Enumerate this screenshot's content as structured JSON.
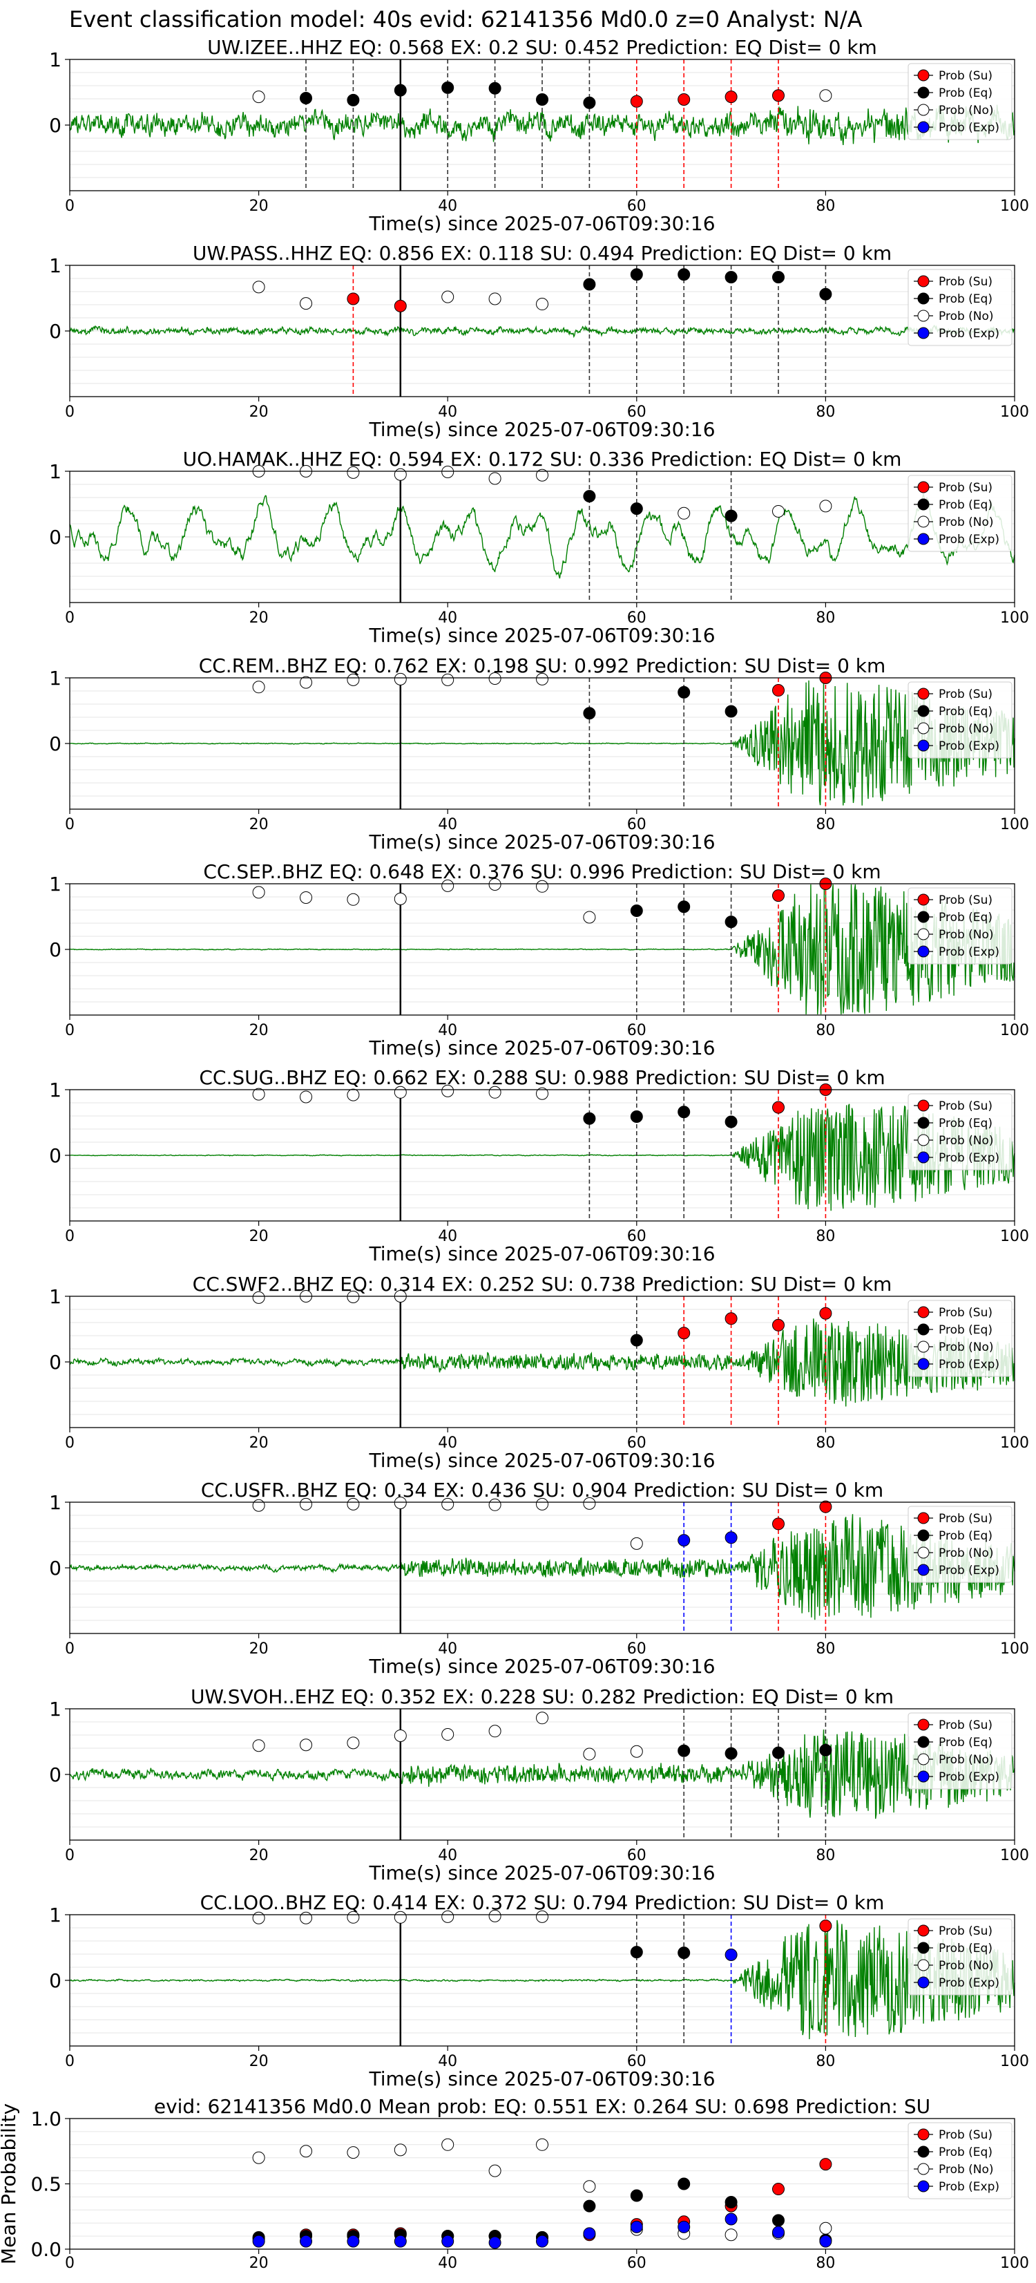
{
  "suptitle": "Event classification model: 40s evid: 62141356 Md0.0 z=0 Analyst: N/A",
  "xlabel": "Time(s) since 2025-07-06T09:30:16",
  "legend": [
    "Prob (Su)",
    "Prob (Eq)",
    "Prob (No)",
    "Prob (Exp)"
  ],
  "colors": {
    "su": "#ff0000",
    "eq": "#000000",
    "no": "#ffffff",
    "exp": "#0000ff",
    "wave": "#008000"
  },
  "chart_data": [
    {
      "type": "line",
      "title": "UW.IZEE..HHZ   EQ: 0.568  EX: 0.2  SU: 0.452   Prediction: EQ    Dist= 0 km",
      "xlim": [
        0,
        100
      ],
      "ylim": [
        -1,
        1
      ],
      "xticks": [
        0,
        20,
        40,
        60,
        80,
        100
      ],
      "yticks": [
        1,
        0
      ],
      "onset": 35,
      "noise": 0.28,
      "burst": 0.15,
      "points": [
        [
          20,
          0.43,
          "no"
        ],
        [
          25,
          0.41,
          "eq"
        ],
        [
          30,
          0.38,
          "eq"
        ],
        [
          35,
          0.53,
          "eq"
        ],
        [
          40,
          0.57,
          "eq"
        ],
        [
          45,
          0.56,
          "eq"
        ],
        [
          50,
          0.39,
          "eq"
        ],
        [
          55,
          0.34,
          "eq"
        ],
        [
          60,
          0.36,
          "su"
        ],
        [
          65,
          0.39,
          "su"
        ],
        [
          70,
          0.43,
          "su"
        ],
        [
          75,
          0.45,
          "su"
        ],
        [
          80,
          0.45,
          "no"
        ]
      ],
      "vlines": [
        [
          25,
          "eq"
        ],
        [
          30,
          "eq"
        ],
        [
          40,
          "eq"
        ],
        [
          45,
          "eq"
        ],
        [
          50,
          "eq"
        ],
        [
          55,
          "eq"
        ],
        [
          60,
          "su"
        ],
        [
          65,
          "su"
        ],
        [
          70,
          "su"
        ],
        [
          75,
          "su"
        ]
      ]
    },
    {
      "type": "line",
      "title": "UW.PASS..HHZ   EQ: 0.856  EX: 0.118  SU: 0.494   Prediction: EQ    Dist= 0 km",
      "xlim": [
        0,
        100
      ],
      "ylim": [
        -1,
        1
      ],
      "xticks": [
        0,
        20,
        40,
        60,
        80,
        100
      ],
      "yticks": [
        1,
        0
      ],
      "onset": 35,
      "noise": 0.08,
      "burst": 0.0,
      "points": [
        [
          20,
          0.67,
          "no"
        ],
        [
          25,
          0.42,
          "no"
        ],
        [
          30,
          0.49,
          "su"
        ],
        [
          35,
          0.38,
          "su"
        ],
        [
          40,
          0.52,
          "no"
        ],
        [
          45,
          0.49,
          "no"
        ],
        [
          50,
          0.41,
          "no"
        ],
        [
          55,
          0.71,
          "eq"
        ],
        [
          60,
          0.86,
          "eq"
        ],
        [
          65,
          0.86,
          "eq"
        ],
        [
          70,
          0.82,
          "eq"
        ],
        [
          75,
          0.82,
          "eq"
        ],
        [
          80,
          0.56,
          "eq"
        ]
      ],
      "vlines": [
        [
          30,
          "su"
        ],
        [
          55,
          "eq"
        ],
        [
          60,
          "eq"
        ],
        [
          65,
          "eq"
        ],
        [
          70,
          "eq"
        ],
        [
          75,
          "eq"
        ],
        [
          80,
          "eq"
        ]
      ]
    },
    {
      "type": "line",
      "title": "UO.HAMAK..HHZ   EQ: 0.594  EX: 0.172  SU: 0.336   Prediction: EQ    Dist= 0 km",
      "xlim": [
        0,
        100
      ],
      "ylim": [
        -1,
        1
      ],
      "xticks": [
        0,
        20,
        40,
        60,
        80,
        100
      ],
      "yticks": [
        1,
        0
      ],
      "onset": 35,
      "noise": 0.55,
      "burst": 0.0,
      "points": [
        [
          20,
          1.0,
          "no"
        ],
        [
          25,
          1.0,
          "no"
        ],
        [
          30,
          0.98,
          "no"
        ],
        [
          35,
          0.95,
          "no"
        ],
        [
          40,
          0.99,
          "no"
        ],
        [
          45,
          0.89,
          "no"
        ],
        [
          50,
          0.94,
          "no"
        ],
        [
          55,
          0.62,
          "eq"
        ],
        [
          60,
          0.43,
          "eq"
        ],
        [
          65,
          0.36,
          "no"
        ],
        [
          70,
          0.32,
          "eq"
        ],
        [
          75,
          0.39,
          "no"
        ],
        [
          80,
          0.47,
          "no"
        ]
      ],
      "vlines": [
        [
          55,
          "eq"
        ],
        [
          60,
          "eq"
        ],
        [
          70,
          "eq"
        ]
      ]
    },
    {
      "type": "line",
      "title": "CC.REM..BHZ   EQ: 0.762  EX: 0.198  SU: 0.992   Prediction: SU    Dist= 0 km",
      "xlim": [
        0,
        100
      ],
      "ylim": [
        -1,
        1
      ],
      "xticks": [
        0,
        20,
        40,
        60,
        80,
        100
      ],
      "yticks": [
        1,
        0
      ],
      "onset": 35,
      "noise": 0.01,
      "burst": 0.9,
      "points": [
        [
          20,
          0.86,
          "no"
        ],
        [
          25,
          0.93,
          "no"
        ],
        [
          30,
          0.97,
          "no"
        ],
        [
          35,
          0.98,
          "no"
        ],
        [
          40,
          0.97,
          "no"
        ],
        [
          45,
          0.99,
          "no"
        ],
        [
          50,
          0.98,
          "no"
        ],
        [
          55,
          0.46,
          "eq"
        ],
        [
          65,
          0.78,
          "eq"
        ],
        [
          70,
          0.49,
          "eq"
        ],
        [
          75,
          0.81,
          "su"
        ],
        [
          80,
          1.0,
          "su"
        ]
      ],
      "vlines": [
        [
          55,
          "eq"
        ],
        [
          65,
          "eq"
        ],
        [
          70,
          "eq"
        ],
        [
          75,
          "su"
        ],
        [
          80,
          "su"
        ]
      ]
    },
    {
      "type": "line",
      "title": "CC.SEP..BHZ   EQ: 0.648  EX: 0.376  SU: 0.996   Prediction: SU    Dist= 0 km",
      "xlim": [
        0,
        100
      ],
      "ylim": [
        -1,
        1
      ],
      "xticks": [
        0,
        20,
        40,
        60,
        80,
        100
      ],
      "yticks": [
        1,
        0
      ],
      "onset": 35,
      "noise": 0.01,
      "burst": 0.95,
      "points": [
        [
          20,
          0.87,
          "no"
        ],
        [
          25,
          0.79,
          "no"
        ],
        [
          30,
          0.76,
          "no"
        ],
        [
          35,
          0.77,
          "no"
        ],
        [
          40,
          0.97,
          "no"
        ],
        [
          45,
          0.99,
          "no"
        ],
        [
          50,
          0.96,
          "no"
        ],
        [
          55,
          0.49,
          "no"
        ],
        [
          60,
          0.59,
          "eq"
        ],
        [
          65,
          0.65,
          "eq"
        ],
        [
          70,
          0.42,
          "eq"
        ],
        [
          75,
          0.82,
          "su"
        ],
        [
          80,
          1.0,
          "su"
        ]
      ],
      "vlines": [
        [
          60,
          "eq"
        ],
        [
          65,
          "eq"
        ],
        [
          70,
          "eq"
        ],
        [
          75,
          "su"
        ],
        [
          80,
          "su"
        ]
      ]
    },
    {
      "type": "line",
      "title": "CC.SUG..BHZ   EQ: 0.662  EX: 0.288  SU: 0.988   Prediction: SU    Dist= 0 km",
      "xlim": [
        0,
        100
      ],
      "ylim": [
        -1,
        1
      ],
      "xticks": [
        0,
        20,
        40,
        60,
        80,
        100
      ],
      "yticks": [
        1,
        0
      ],
      "onset": 35,
      "noise": 0.01,
      "burst": 0.8,
      "points": [
        [
          20,
          0.93,
          "no"
        ],
        [
          25,
          0.89,
          "no"
        ],
        [
          30,
          0.92,
          "no"
        ],
        [
          35,
          0.96,
          "no"
        ],
        [
          40,
          0.98,
          "no"
        ],
        [
          45,
          0.96,
          "no"
        ],
        [
          50,
          0.94,
          "no"
        ],
        [
          55,
          0.56,
          "eq"
        ],
        [
          60,
          0.59,
          "eq"
        ],
        [
          65,
          0.66,
          "eq"
        ],
        [
          70,
          0.51,
          "eq"
        ],
        [
          75,
          0.73,
          "su"
        ],
        [
          80,
          1.0,
          "su"
        ]
      ],
      "vlines": [
        [
          55,
          "eq"
        ],
        [
          60,
          "eq"
        ],
        [
          65,
          "eq"
        ],
        [
          70,
          "eq"
        ],
        [
          75,
          "su"
        ],
        [
          80,
          "su"
        ]
      ]
    },
    {
      "type": "line",
      "title": "CC.SWF2..BHZ   EQ: 0.314  EX: 0.252  SU: 0.738   Prediction: SU    Dist= 0 km",
      "xlim": [
        0,
        100
      ],
      "ylim": [
        -1,
        1
      ],
      "xticks": [
        0,
        20,
        40,
        60,
        80,
        100
      ],
      "yticks": [
        1,
        0
      ],
      "onset": 35,
      "noise": 0.07,
      "burst": 0.6,
      "points": [
        [
          20,
          0.98,
          "no"
        ],
        [
          25,
          1.0,
          "no"
        ],
        [
          30,
          0.99,
          "no"
        ],
        [
          35,
          1.0,
          "no"
        ],
        [
          60,
          0.33,
          "eq"
        ],
        [
          65,
          0.44,
          "su"
        ],
        [
          70,
          0.66,
          "su"
        ],
        [
          75,
          0.56,
          "su"
        ],
        [
          80,
          0.74,
          "su"
        ]
      ],
      "vlines": [
        [
          60,
          "eq"
        ],
        [
          65,
          "su"
        ],
        [
          70,
          "su"
        ],
        [
          75,
          "su"
        ],
        [
          80,
          "su"
        ]
      ]
    },
    {
      "type": "line",
      "title": "CC.USFR..BHZ   EQ: 0.34  EX: 0.436  SU: 0.904   Prediction: SU    Dist= 0 km",
      "xlim": [
        0,
        100
      ],
      "ylim": [
        -1,
        1
      ],
      "xticks": [
        0,
        20,
        40,
        60,
        80,
        100
      ],
      "yticks": [
        1,
        0
      ],
      "onset": 35,
      "noise": 0.07,
      "burst": 0.7,
      "points": [
        [
          20,
          0.95,
          "no"
        ],
        [
          25,
          0.97,
          "no"
        ],
        [
          30,
          0.97,
          "no"
        ],
        [
          35,
          0.99,
          "no"
        ],
        [
          40,
          0.97,
          "no"
        ],
        [
          45,
          0.96,
          "no"
        ],
        [
          50,
          0.97,
          "no"
        ],
        [
          55,
          0.98,
          "no"
        ],
        [
          60,
          0.37,
          "no"
        ],
        [
          65,
          0.42,
          "exp"
        ],
        [
          70,
          0.46,
          "exp"
        ],
        [
          75,
          0.67,
          "su"
        ],
        [
          80,
          0.93,
          "su"
        ]
      ],
      "vlines": [
        [
          65,
          "exp"
        ],
        [
          70,
          "exp"
        ],
        [
          75,
          "su"
        ],
        [
          80,
          "su"
        ]
      ]
    },
    {
      "type": "line",
      "title": "UW.SVOH..EHZ   EQ: 0.352  EX: 0.228  SU: 0.282   Prediction: EQ    Dist= 0 km",
      "xlim": [
        0,
        100
      ],
      "ylim": [
        -1,
        1
      ],
      "xticks": [
        0,
        20,
        40,
        60,
        80,
        100
      ],
      "yticks": [
        1,
        0
      ],
      "onset": 35,
      "noise": 0.12,
      "burst": 0.6,
      "points": [
        [
          20,
          0.44,
          "no"
        ],
        [
          25,
          0.45,
          "no"
        ],
        [
          30,
          0.48,
          "no"
        ],
        [
          35,
          0.59,
          "no"
        ],
        [
          40,
          0.61,
          "no"
        ],
        [
          45,
          0.66,
          "no"
        ],
        [
          50,
          0.86,
          "no"
        ],
        [
          55,
          0.31,
          "no"
        ],
        [
          60,
          0.35,
          "no"
        ],
        [
          65,
          0.36,
          "eq"
        ],
        [
          70,
          0.32,
          "eq"
        ],
        [
          75,
          0.33,
          "eq"
        ],
        [
          80,
          0.37,
          "eq"
        ]
      ],
      "vlines": [
        [
          65,
          "eq"
        ],
        [
          70,
          "eq"
        ],
        [
          75,
          "eq"
        ],
        [
          80,
          "eq"
        ]
      ]
    },
    {
      "type": "line",
      "title": "CC.LOO..BHZ   EQ: 0.414  EX: 0.372  SU: 0.794   Prediction: SU    Dist= 0 km",
      "xlim": [
        0,
        100
      ],
      "ylim": [
        -1,
        1
      ],
      "xticks": [
        0,
        20,
        40,
        60,
        80,
        100
      ],
      "yticks": [
        1,
        0
      ],
      "onset": 35,
      "noise": 0.02,
      "burst": 0.85,
      "points": [
        [
          20,
          0.95,
          "no"
        ],
        [
          25,
          0.95,
          "no"
        ],
        [
          30,
          0.96,
          "no"
        ],
        [
          35,
          0.96,
          "no"
        ],
        [
          40,
          0.97,
          "no"
        ],
        [
          45,
          0.98,
          "no"
        ],
        [
          50,
          0.97,
          "no"
        ],
        [
          60,
          0.43,
          "eq"
        ],
        [
          65,
          0.42,
          "eq"
        ],
        [
          70,
          0.39,
          "exp"
        ],
        [
          80,
          0.83,
          "su"
        ]
      ],
      "vlines": [
        [
          60,
          "eq"
        ],
        [
          65,
          "eq"
        ],
        [
          70,
          "exp"
        ],
        [
          80,
          "su"
        ]
      ]
    },
    {
      "type": "scatter",
      "title": "evid: 62141356  Md0.0   Mean prob:   EQ: 0.551  EX: 0.264  SU: 0.698   Prediction: SU",
      "ylabel": "Mean Probability",
      "xlim": [
        0,
        100
      ],
      "ylim": [
        0,
        1
      ],
      "xticks": [
        0,
        20,
        40,
        60,
        80,
        100
      ],
      "yticks": [
        1.0,
        0.5,
        0.0
      ],
      "x": [
        20,
        25,
        30,
        35,
        40,
        45,
        50,
        55,
        60,
        65,
        70,
        75,
        80
      ],
      "series": [
        {
          "name": "Prob (Su)",
          "key": "su",
          "values": [
            0.08,
            0.11,
            0.11,
            0.12,
            0.1,
            0.1,
            0.09,
            0.11,
            0.19,
            0.21,
            0.33,
            0.46,
            0.65
          ]
        },
        {
          "name": "Prob (Eq)",
          "key": "eq",
          "values": [
            0.09,
            0.1,
            0.1,
            0.11,
            0.1,
            0.1,
            0.09,
            0.33,
            0.41,
            0.5,
            0.36,
            0.22,
            0.07
          ]
        },
        {
          "name": "Prob (No)",
          "key": "no",
          "values": [
            0.7,
            0.75,
            0.74,
            0.76,
            0.8,
            0.6,
            0.8,
            0.48,
            0.15,
            0.12,
            0.11,
            0.12,
            0.16
          ]
        },
        {
          "name": "Prob (Exp)",
          "key": "exp",
          "values": [
            0.06,
            0.06,
            0.06,
            0.06,
            0.06,
            0.05,
            0.06,
            0.12,
            0.17,
            0.17,
            0.23,
            0.13,
            0.06
          ]
        }
      ]
    }
  ]
}
